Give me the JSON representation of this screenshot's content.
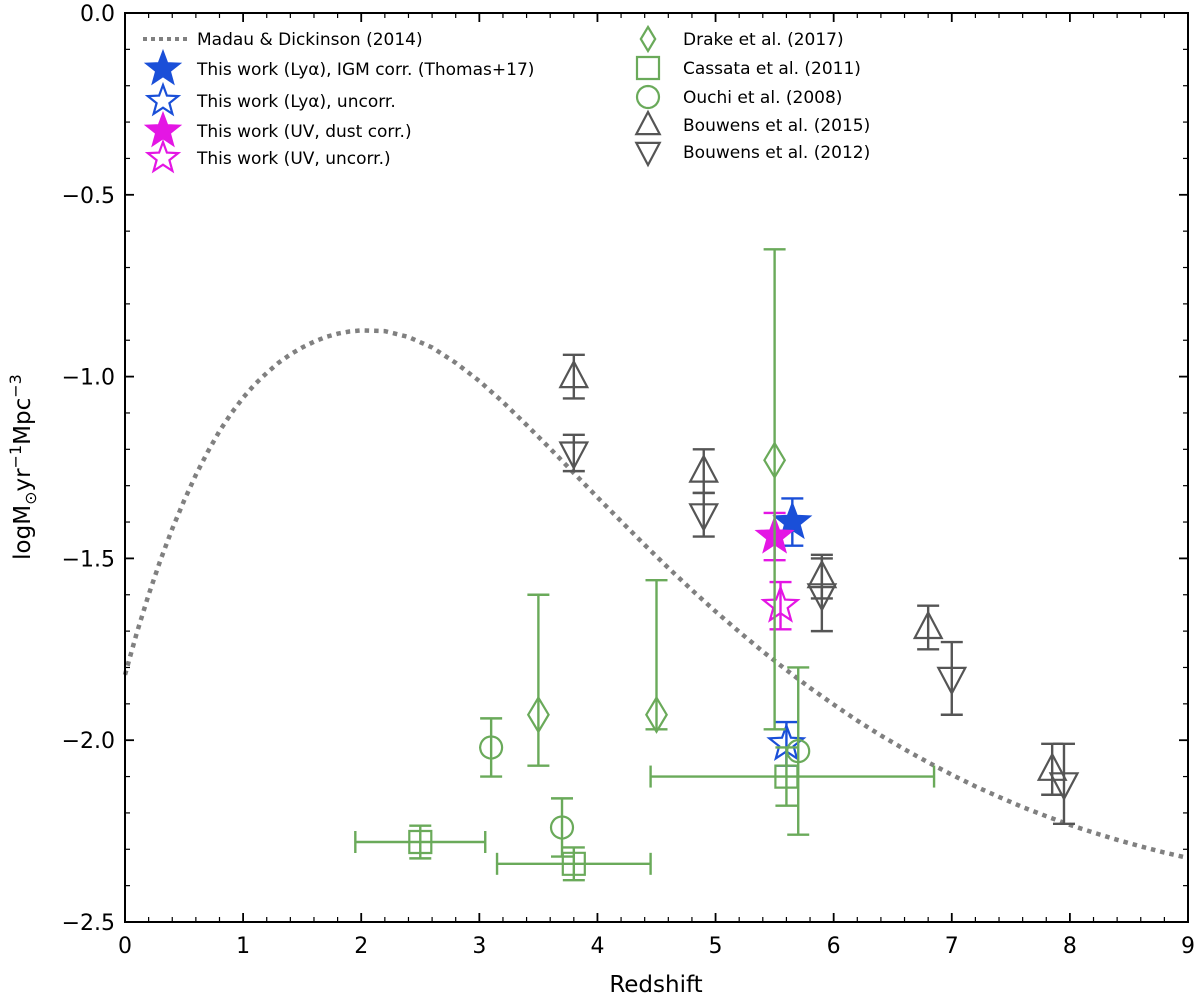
{
  "chart_data": {
    "type": "scatter",
    "xlabel": "Redshift",
    "ylabel": {
      "base": "logM",
      "sub": "⊙",
      "mid1": "yr",
      "sup1": "−1",
      "mid2": "Mpc",
      "sup2": "−3"
    },
    "xlim": [
      0,
      9
    ],
    "ylim": [
      -2.5,
      0
    ],
    "xticks": [
      0,
      1,
      2,
      3,
      4,
      5,
      6,
      7,
      8,
      9
    ],
    "xtick_labels": [
      "0",
      "1",
      "2",
      "3",
      "4",
      "5",
      "6",
      "7",
      "8",
      "9"
    ],
    "yticks": [
      0,
      -0.5,
      -1,
      -1.5,
      -2,
      -2.5
    ],
    "ytick_labels": [
      "0.0",
      "−0.5",
      "−1.0",
      "−1.5",
      "−2.0",
      "−2.5"
    ],
    "colors": {
      "green": "#6aaa5a",
      "gray": "#555555",
      "blue": "#1a4fd8",
      "magenta": "#e416e4",
      "curve": "#808080"
    },
    "curve": {
      "name": "Madau & Dickinson (2014)",
      "x": [
        0,
        0.1,
        0.2,
        0.3,
        0.4,
        0.5,
        0.6,
        0.7,
        0.8,
        0.9,
        1.0,
        1.1,
        1.2,
        1.3,
        1.4,
        1.5,
        1.6,
        1.7,
        1.8,
        1.9,
        2.0,
        2.2,
        2.4,
        2.6,
        2.8,
        3.0,
        3.2,
        3.4,
        3.6,
        3.8,
        4.0,
        4.2,
        4.4,
        4.6,
        4.8,
        5.0,
        5.2,
        5.4,
        5.6,
        5.8,
        6.0,
        6.2,
        6.4,
        6.6,
        6.8,
        7.0,
        7.2,
        7.4,
        7.6,
        7.8,
        8.0,
        8.2,
        8.4,
        8.6,
        8.8,
        9.0
      ],
      "y": [
        -1.82,
        -1.705,
        -1.6,
        -1.505,
        -1.419,
        -1.341,
        -1.27,
        -1.207,
        -1.15,
        -1.101,
        -1.058,
        -1.021,
        -0.99,
        -0.962,
        -0.939,
        -0.92,
        -0.904,
        -0.891,
        -0.882,
        -0.876,
        -0.873,
        -0.875,
        -0.891,
        -0.92,
        -0.962,
        -1.012,
        -1.07,
        -1.133,
        -1.198,
        -1.265,
        -1.332,
        -1.398,
        -1.463,
        -1.526,
        -1.587,
        -1.646,
        -1.702,
        -1.756,
        -1.807,
        -1.856,
        -1.902,
        -1.946,
        -1.987,
        -2.025,
        -2.061,
        -2.095,
        -2.127,
        -2.156,
        -2.184,
        -2.209,
        -2.233,
        -2.254,
        -2.274,
        -2.292,
        -2.309,
        -2.324
      ]
    },
    "series": [
      {
        "name": "This work (Lyα), IGM corr. (Thomas+17)",
        "marker": "star",
        "filled": true,
        "color": "#1a4fd8",
        "points": [
          {
            "x": 5.65,
            "y": -1.4,
            "yerr": [
              0.065,
              0.065
            ],
            "xerr": [
              0,
              0
            ]
          }
        ]
      },
      {
        "name": "This work (Lyα), uncorr.",
        "marker": "star",
        "filled": false,
        "color": "#1a4fd8",
        "points": [
          {
            "x": 5.6,
            "y": -2.01,
            "yerr": [
              0.06,
              0.06
            ],
            "xerr": [
              0,
              0
            ]
          }
        ]
      },
      {
        "name": "This work (UV, dust corr.)",
        "marker": "star",
        "filled": true,
        "color": "#e416e4",
        "points": [
          {
            "x": 5.5,
            "y": -1.44,
            "yerr": [
              0.065,
              0.065
            ],
            "xerr": [
              0,
              0
            ]
          }
        ]
      },
      {
        "name": "This work (UV, uncorr.)",
        "marker": "star",
        "filled": false,
        "color": "#e416e4",
        "points": [
          {
            "x": 5.55,
            "y": -1.63,
            "yerr": [
              0.065,
              0.065
            ],
            "xerr": [
              0,
              0
            ]
          }
        ]
      },
      {
        "name": "Drake et al. (2017)",
        "marker": "diamond",
        "filled": false,
        "color": "#6aaa5a",
        "points": [
          {
            "x": 3.5,
            "y": -1.93,
            "yerr": [
              0.14,
              0.33
            ],
            "xerr": [
              0,
              0
            ]
          },
          {
            "x": 4.5,
            "y": -1.93,
            "yerr": [
              0.04,
              0.37
            ],
            "xerr": [
              0,
              0
            ]
          },
          {
            "x": 5.5,
            "y": -1.23,
            "yerr": [
              0.74,
              0.58
            ],
            "xerr": [
              0,
              0
            ]
          }
        ]
      },
      {
        "name": "Cassata et al. (2011)",
        "marker": "square",
        "filled": false,
        "color": "#6aaa5a",
        "points": [
          {
            "x": 2.5,
            "y": -2.28,
            "yerr": [
              0.045,
              0.045
            ],
            "xerr": [
              0.55,
              0.55
            ]
          },
          {
            "x": 3.8,
            "y": -2.34,
            "yerr": [
              0.045,
              0.045
            ],
            "xerr": [
              0.65,
              0.65
            ]
          },
          {
            "x": 5.6,
            "y": -2.1,
            "yerr": [
              0.08,
              0.08
            ],
            "xerr": [
              1.15,
              1.25
            ]
          }
        ]
      },
      {
        "name": "Ouchi et al. (2008)",
        "marker": "circle",
        "filled": false,
        "color": "#6aaa5a",
        "points": [
          {
            "x": 3.1,
            "y": -2.02,
            "yerr": [
              0.08,
              0.08
            ],
            "xerr": [
              0,
              0
            ]
          },
          {
            "x": 3.7,
            "y": -2.24,
            "yerr": [
              0.08,
              0.08
            ],
            "xerr": [
              0,
              0
            ]
          },
          {
            "x": 5.7,
            "y": -2.03,
            "yerr": [
              0.23,
              0.23
            ],
            "xerr": [
              0,
              0
            ]
          }
        ]
      },
      {
        "name": "Bouwens et al. (2015)",
        "marker": "triangle-up",
        "filled": false,
        "color": "#555555",
        "points": [
          {
            "x": 3.8,
            "y": -1.0,
            "yerr": [
              0.06,
              0.06
            ],
            "xerr": [
              0,
              0
            ]
          },
          {
            "x": 4.9,
            "y": -1.26,
            "yerr": [
              0.06,
              0.06
            ],
            "xerr": [
              0,
              0
            ]
          },
          {
            "x": 5.9,
            "y": -1.55,
            "yerr": [
              0.06,
              0.06
            ],
            "xerr": [
              0,
              0
            ]
          },
          {
            "x": 6.8,
            "y": -1.69,
            "yerr": [
              0.06,
              0.06
            ],
            "xerr": [
              0,
              0
            ]
          },
          {
            "x": 7.85,
            "y": -2.08,
            "yerr": [
              0.07,
              0.07
            ],
            "xerr": [
              0,
              0
            ]
          }
        ]
      },
      {
        "name": "Bouwens et al. (2012)",
        "marker": "triangle-down",
        "filled": false,
        "color": "#555555",
        "points": [
          {
            "x": 3.8,
            "y": -1.21,
            "yerr": [
              0.05,
              0.05
            ],
            "xerr": [
              0,
              0
            ]
          },
          {
            "x": 4.9,
            "y": -1.38,
            "yerr": [
              0.06,
              0.06
            ],
            "xerr": [
              0,
              0
            ]
          },
          {
            "x": 5.9,
            "y": -1.6,
            "yerr": [
              0.1,
              0.1
            ],
            "xerr": [
              0,
              0
            ]
          },
          {
            "x": 7.0,
            "y": -1.83,
            "yerr": [
              0.1,
              0.1
            ],
            "xerr": [
              0,
              0
            ]
          },
          {
            "x": 7.95,
            "y": -2.12,
            "yerr": [
              0.11,
              0.11
            ],
            "xerr": [
              0,
              0
            ]
          }
        ]
      }
    ],
    "legend": {
      "placement": "top-left, two columns",
      "left_column": [
        "Madau & Dickinson (2014)",
        "This work (Lyα), IGM corr. (Thomas+17)",
        "This work (Lyα), uncorr.",
        "This work (UV, dust corr.)",
        "This work (UV, uncorr.)"
      ],
      "right_column": [
        "Drake et al. (2017)",
        "Cassata et al. (2011)",
        "Ouchi et al. (2008)",
        "Bouwens et al. (2015)",
        "Bouwens et al. (2012)"
      ]
    }
  }
}
